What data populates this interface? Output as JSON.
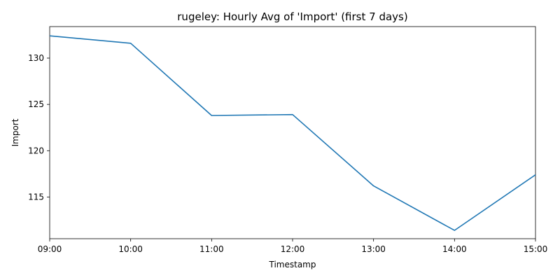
{
  "chart_data": {
    "type": "line",
    "title": "rugeley: Hourly Avg of 'Import' (first 7 days)",
    "xlabel": "Timestamp",
    "ylabel": "Import",
    "x": [
      "09:00",
      "10:00",
      "11:00",
      "12:00",
      "13:00",
      "14:00",
      "15:00"
    ],
    "series": [
      {
        "values": [
          132.4,
          131.6,
          123.8,
          123.9,
          116.2,
          111.4,
          117.4
        ]
      }
    ],
    "ylim": [
      110.5,
      133.4
    ],
    "yticks": [
      115,
      120,
      125,
      130
    ],
    "grid": false,
    "line_color": "#1f77b4"
  }
}
